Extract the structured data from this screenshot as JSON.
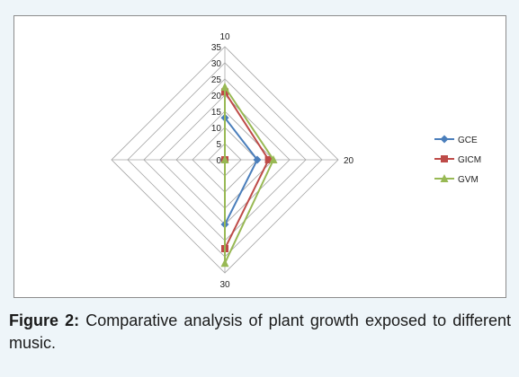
{
  "caption": {
    "label": "Figure 2:",
    "text": "Comparative analysis of plant growth exposed to different music."
  },
  "chart_data": {
    "type": "radar",
    "categories": [
      "10",
      "20",
      "30",
      ""
    ],
    "radial_ticks": [
      "0",
      "5",
      "10",
      "15",
      "20",
      "25",
      "30",
      "35"
    ],
    "rlim": [
      0,
      35
    ],
    "grid": true,
    "legend_position": "right",
    "series": [
      {
        "name": "GCE",
        "color": "#4a7ebb",
        "marker": "diamond",
        "values": [
          13,
          10,
          20,
          0
        ]
      },
      {
        "name": "GICM",
        "color": "#be4b48",
        "marker": "square",
        "values": [
          21,
          13.5,
          27.5,
          0
        ]
      },
      {
        "name": "GVM",
        "color": "#98b954",
        "marker": "triangle",
        "values": [
          22.5,
          15,
          32,
          0
        ]
      }
    ]
  }
}
